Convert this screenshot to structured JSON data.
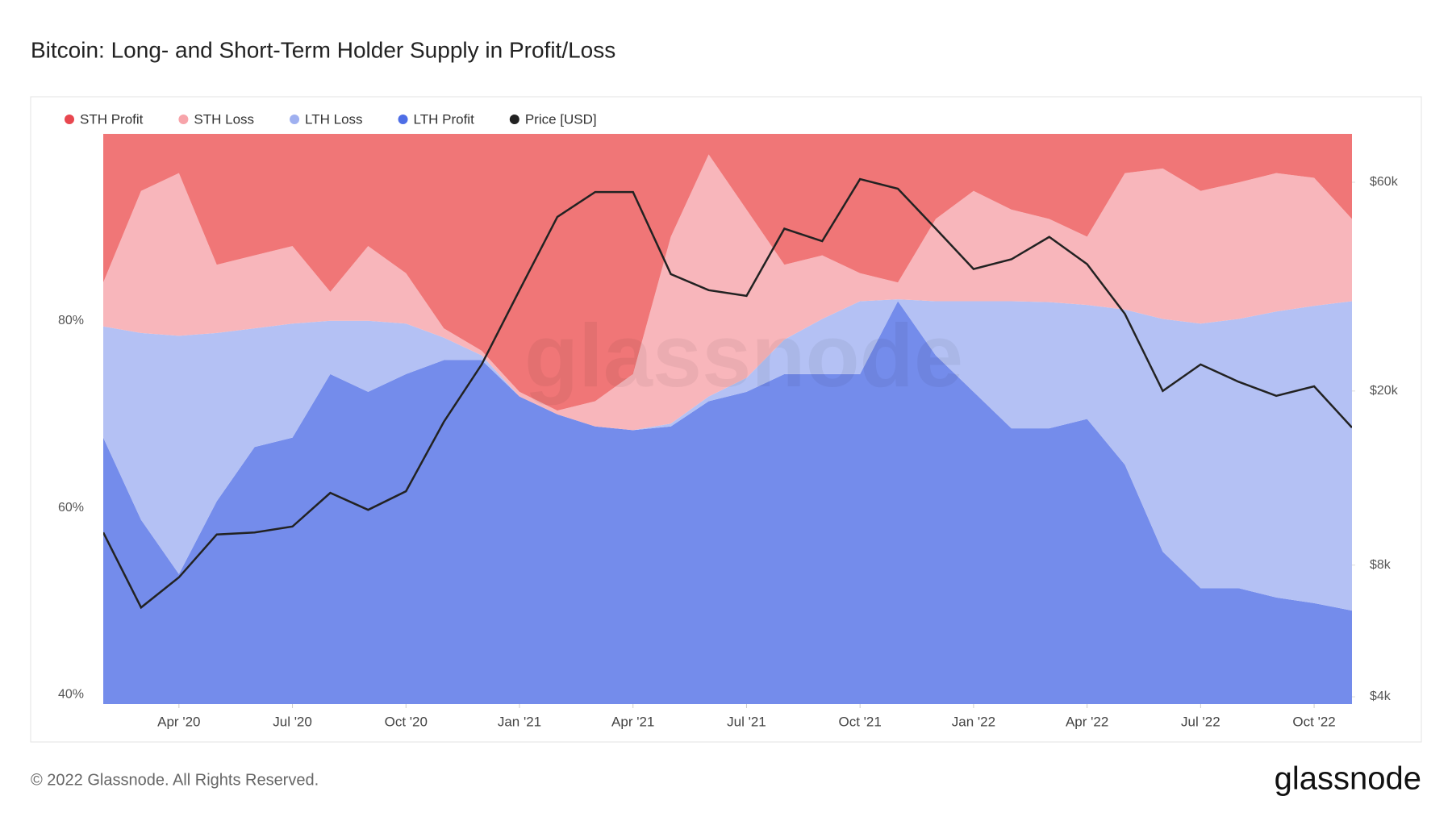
{
  "chart_data": {
    "type": "stacked-area",
    "title": "Bitcoin: Long- and Short-Term Holder Supply in Profit/Loss",
    "watermark": "glassnode",
    "footer": "© 2022 Glassnode. All Rights Reserved.",
    "brand": "glassnode",
    "x": [
      "2020-02",
      "2020-03",
      "2020-04",
      "2020-05",
      "2020-06",
      "2020-07",
      "2020-08",
      "2020-09",
      "2020-10",
      "2020-11",
      "2020-12",
      "2021-01",
      "2021-02",
      "2021-03",
      "2021-04",
      "2021-05",
      "2021-06",
      "2021-07",
      "2021-08",
      "2021-09",
      "2021-10",
      "2021-11",
      "2021-12",
      "2022-01",
      "2022-02",
      "2022-03",
      "2022-04",
      "2022-05",
      "2022-06",
      "2022-07",
      "2022-08",
      "2022-09",
      "2022-10",
      "2022-11"
    ],
    "xlim": [
      "2020-02",
      "2022-11"
    ],
    "xticks": [
      {
        "value": "2020-04",
        "label": "Apr '20"
      },
      {
        "value": "2020-07",
        "label": "Jul '20"
      },
      {
        "value": "2020-10",
        "label": "Oct '20"
      },
      {
        "value": "2021-01",
        "label": "Jan '21"
      },
      {
        "value": "2021-04",
        "label": "Apr '21"
      },
      {
        "value": "2021-07",
        "label": "Jul '21"
      },
      {
        "value": "2021-10",
        "label": "Oct '21"
      },
      {
        "value": "2022-01",
        "label": "Jan '22"
      },
      {
        "value": "2022-04",
        "label": "Apr '22"
      },
      {
        "value": "2022-07",
        "label": "Jul '22"
      },
      {
        "value": "2022-10",
        "label": "Oct '22"
      }
    ],
    "ylim": [
      39,
      100
    ],
    "yticks": [
      {
        "value": 40,
        "label": "40%"
      },
      {
        "value": 60,
        "label": "60%"
      },
      {
        "value": 80,
        "label": "80%"
      }
    ],
    "y2lim": [
      3850,
      77400
    ],
    "y2log": true,
    "y2ticks": [
      {
        "value": 4000,
        "label": "$4k"
      },
      {
        "value": 8000,
        "label": "$8k"
      },
      {
        "value": 20000,
        "label": "$20k"
      },
      {
        "value": 60000,
        "label": "$60k"
      }
    ],
    "series": [
      {
        "name": "STH Profit",
        "color": "#f07677",
        "legend_color": "#e8474f",
        "values": [
          15.9,
          6.1,
          4.2,
          14.0,
          13.0,
          12.0,
          16.9,
          12.0,
          14.9,
          20.8,
          23.2,
          27.6,
          29.6,
          28.6,
          25.7,
          11.0,
          2.2,
          8.1,
          14.0,
          13.0,
          14.9,
          15.9,
          9.1,
          6.1,
          8.1,
          9.1,
          11.0,
          4.2,
          3.7,
          6.1,
          5.2,
          4.2,
          4.7,
          9.1
        ]
      },
      {
        "name": "STH Loss",
        "color": "#f8b6bb",
        "legend_color": "#f7a4aa",
        "values": [
          4.7,
          15.2,
          17.4,
          7.3,
          7.8,
          8.3,
          3.1,
          8.0,
          5.4,
          1.0,
          0.5,
          0.5,
          0.4,
          2.7,
          6.0,
          20.0,
          25.9,
          18.0,
          8.0,
          6.8,
          3.0,
          1.8,
          8.8,
          11.8,
          9.8,
          8.9,
          7.3,
          14.6,
          16.1,
          14.2,
          14.6,
          14.8,
          13.7,
          8.8
        ]
      },
      {
        "name": "LTH Loss",
        "color": "#b4c1f4",
        "legend_color": "#9fb0f0",
        "values": [
          11.9,
          20.0,
          25.5,
          18.0,
          12.7,
          12.2,
          5.7,
          7.6,
          5.4,
          2.4,
          0.5,
          0,
          0,
          0,
          0,
          0.3,
          0.5,
          1.5,
          3.7,
          5.9,
          7.8,
          0.2,
          5.8,
          9.7,
          13.6,
          13.5,
          12.2,
          16.6,
          24.9,
          28.3,
          28.8,
          30.6,
          31.8,
          33.1
        ]
      },
      {
        "name": "LTH Profit",
        "color": "#748ceb",
        "legend_color": "#4e6ee6",
        "values": [
          67.5,
          58.7,
          52.9,
          60.7,
          66.5,
          67.5,
          74.3,
          72.4,
          74.3,
          75.8,
          75.8,
          71.9,
          70.0,
          68.7,
          68.3,
          68.7,
          71.4,
          72.4,
          74.3,
          74.3,
          74.3,
          82.1,
          76.3,
          72.4,
          68.5,
          68.5,
          69.5,
          64.6,
          55.3,
          51.4,
          51.4,
          50.4,
          49.8,
          49.0
        ]
      },
      {
        "name": "Price [USD]",
        "color": "#222222",
        "legend_color": "#222222",
        "axis": "y2",
        "line": true,
        "values": [
          9500,
          6400,
          7500,
          9400,
          9500,
          9800,
          11700,
          10700,
          11800,
          17000,
          23000,
          34000,
          50000,
          57000,
          57000,
          37000,
          34000,
          33000,
          47000,
          44000,
          61000,
          58000,
          47000,
          38000,
          40000,
          45000,
          39000,
          30000,
          20000,
          23000,
          21000,
          19500,
          20500,
          16500
        ]
      }
    ]
  }
}
